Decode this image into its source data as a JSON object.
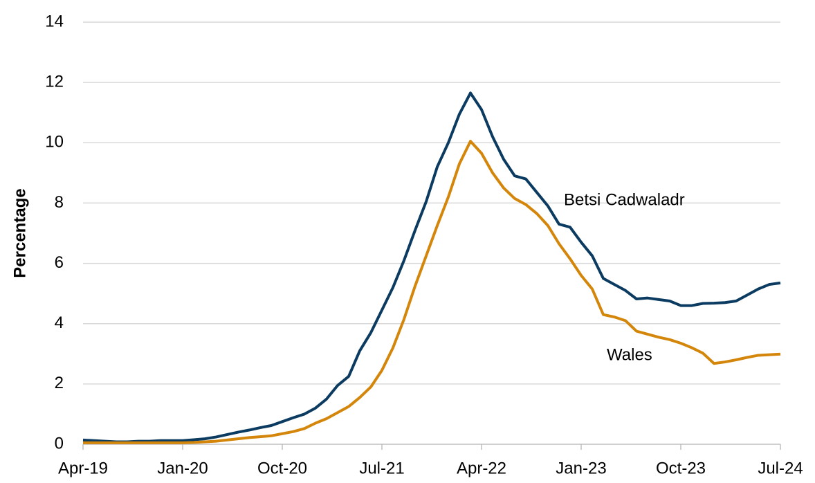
{
  "chart_data": {
    "type": "line",
    "y_label": "Percentage",
    "categories": [
      "Apr-19",
      null,
      null,
      null,
      null,
      null,
      null,
      null,
      null,
      "Jan-20",
      null,
      null,
      null,
      null,
      null,
      null,
      null,
      null,
      "Oct-20",
      null,
      null,
      null,
      null,
      null,
      null,
      null,
      null,
      "Jul-21",
      null,
      null,
      null,
      null,
      null,
      null,
      null,
      null,
      "Apr-22",
      null,
      null,
      null,
      null,
      null,
      null,
      null,
      null,
      "Jan-23",
      null,
      null,
      null,
      null,
      null,
      null,
      null,
      null,
      "Oct-23",
      null,
      null,
      null,
      null,
      null,
      null,
      null,
      null,
      "Jul-24"
    ],
    "series": [
      {
        "name": "Betsi Cadwaladr",
        "color": "#0b3b60",
        "values": [
          0.14,
          0.12,
          0.1,
          0.08,
          0.08,
          0.1,
          0.1,
          0.12,
          0.12,
          0.12,
          0.15,
          0.18,
          0.24,
          0.32,
          0.4,
          0.47,
          0.55,
          0.62,
          0.75,
          0.88,
          1.0,
          1.2,
          1.5,
          1.95,
          2.25,
          3.1,
          3.7,
          4.45,
          5.2,
          6.1,
          7.1,
          8.05,
          9.2,
          10.0,
          10.95,
          11.65,
          11.1,
          10.2,
          9.45,
          8.9,
          8.8,
          8.35,
          7.9,
          7.3,
          7.2,
          6.7,
          6.25,
          5.5,
          5.3,
          5.1,
          4.82,
          4.85,
          4.8,
          4.75,
          4.6,
          4.6,
          4.67,
          4.68,
          4.7,
          4.75,
          4.95,
          5.15,
          5.3,
          5.35
        ]
      },
      {
        "name": "Wales",
        "color": "#d4860b",
        "values": [
          0.05,
          0.05,
          0.05,
          0.05,
          0.05,
          0.05,
          0.05,
          0.05,
          0.05,
          0.05,
          0.06,
          0.08,
          0.1,
          0.14,
          0.18,
          0.22,
          0.25,
          0.28,
          0.35,
          0.42,
          0.52,
          0.7,
          0.85,
          1.05,
          1.25,
          1.55,
          1.9,
          2.45,
          3.2,
          4.15,
          5.25,
          6.25,
          7.25,
          8.2,
          9.3,
          10.05,
          9.65,
          9.0,
          8.5,
          8.15,
          7.95,
          7.65,
          7.25,
          6.65,
          6.15,
          5.6,
          5.15,
          4.3,
          4.22,
          4.1,
          3.75,
          3.65,
          3.55,
          3.47,
          3.35,
          3.2,
          3.02,
          2.68,
          2.73,
          2.8,
          2.88,
          2.95,
          2.97,
          2.99
        ]
      }
    ],
    "ylim": [
      0,
      14
    ],
    "yticks": [
      0,
      2,
      4,
      6,
      8,
      10,
      12,
      14
    ],
    "grid": true
  }
}
